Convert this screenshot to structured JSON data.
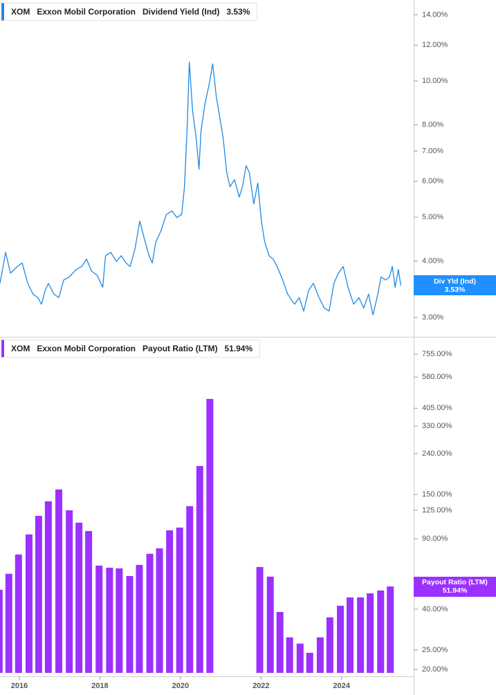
{
  "chart_data": [
    {
      "type": "line",
      "ticker": "XOM",
      "company": "Exxon Mobil Corporation",
      "current_label": "3.53%",
      "badge_label": "Div Yld (Ind)",
      "log_scale": true,
      "x": [
        2015.52,
        2015.66,
        2015.78,
        2015.95,
        2016.07,
        2016.21,
        2016.34,
        2016.46,
        2016.55,
        2016.64,
        2016.72,
        2016.86,
        2016.98,
        2017.1,
        2017.24,
        2017.41,
        2017.55,
        2017.67,
        2017.79,
        2017.93,
        2018.07,
        2018.14,
        2018.27,
        2018.41,
        2018.53,
        2018.65,
        2018.75,
        2018.87,
        2018.99,
        2019.1,
        2019.22,
        2019.3,
        2019.39,
        2019.51,
        2019.65,
        2019.79,
        2019.91,
        2020.03,
        2020.1,
        2020.17,
        2020.22,
        2020.3,
        2020.39,
        2020.46,
        2020.51,
        2020.61,
        2020.72,
        2020.8,
        2020.89,
        2020.99,
        2021.06,
        2021.15,
        2021.23,
        2021.34,
        2021.46,
        2021.54,
        2021.63,
        2021.71,
        2021.82,
        2021.92,
        2022.01,
        2022.09,
        2022.2,
        2022.3,
        2022.4,
        2022.54,
        2022.66,
        2022.83,
        2022.95,
        2023.06,
        2023.18,
        2023.3,
        2023.44,
        2023.57,
        2023.69,
        2023.81,
        2023.92,
        2024.04,
        2024.16,
        2024.3,
        2024.43,
        2024.55,
        2024.67,
        2024.78,
        2024.9,
        2024.98,
        2025.09,
        2025.19,
        2025.26,
        2025.33,
        2025.41,
        2025.47
      ],
      "series": [
        {
          "name": "Dividend Yield (Ind)",
          "color": "#1e88e5",
          "values": [
            3.57,
            4.18,
            3.76,
            3.89,
            3.96,
            3.57,
            3.38,
            3.32,
            3.21,
            3.44,
            3.57,
            3.38,
            3.32,
            3.63,
            3.69,
            3.83,
            3.89,
            4.04,
            3.8,
            3.72,
            3.5,
            4.11,
            4.18,
            3.99,
            4.11,
            3.96,
            3.89,
            4.25,
            4.9,
            4.49,
            4.11,
            3.96,
            4.41,
            4.65,
            5.07,
            5.16,
            4.99,
            5.07,
            5.84,
            8.03,
            11.02,
            8.61,
            7.48,
            6.38,
            7.75,
            8.92,
            9.91,
            10.91,
            9.24,
            8.17,
            7.48,
            6.27,
            5.84,
            6.05,
            5.54,
            5.84,
            6.5,
            6.27,
            5.35,
            5.95,
            4.9,
            4.41,
            4.11,
            4.04,
            3.89,
            3.63,
            3.38,
            3.21,
            3.32,
            3.1,
            3.44,
            3.57,
            3.32,
            3.15,
            3.1,
            3.57,
            3.76,
            3.89,
            3.5,
            3.21,
            3.32,
            3.15,
            3.38,
            3.04,
            3.38,
            3.69,
            3.63,
            3.69,
            3.89,
            3.5,
            3.83,
            3.53
          ]
        }
      ],
      "xlim": [
        2015.52,
        2025.79
      ],
      "ylim": [
        2.72,
        15.1
      ],
      "yticks": [
        {
          "value": 14,
          "label": "14.00%"
        },
        {
          "value": 12,
          "label": "12.00%"
        },
        {
          "value": 10,
          "label": "10.00%"
        },
        {
          "value": 8,
          "label": "8.00%"
        },
        {
          "value": 7,
          "label": "7.00%"
        },
        {
          "value": 6,
          "label": "6.00%"
        },
        {
          "value": 5,
          "label": "5.00%"
        },
        {
          "value": 4,
          "label": "4.00%"
        },
        {
          "value": 3,
          "label": "3.00%"
        }
      ]
    },
    {
      "type": "bar",
      "ticker": "XOM",
      "company": "Exxon Mobil Corporation",
      "current_label": "51.94%",
      "log_scale": true,
      "x": [
        2015.5,
        2015.74,
        2015.98,
        2016.24,
        2016.48,
        2016.72,
        2016.98,
        2017.24,
        2017.48,
        2017.72,
        2017.98,
        2018.24,
        2018.48,
        2018.74,
        2018.98,
        2019.24,
        2019.48,
        2019.73,
        2019.98,
        2020.23,
        2020.48,
        2020.73,
        2021.97,
        2022.23,
        2022.47,
        2022.71,
        2022.97,
        2023.21,
        2023.47,
        2023.71,
        2023.97,
        2024.21,
        2024.47,
        2024.71,
        2024.97,
        2025.21
      ],
      "series": [
        {
          "name": "Payout Ratio (LTM)",
          "color": "#9b30ff",
          "values": [
            50.0,
            60.1,
            75.1,
            94.6,
            117.2,
            138.6,
            158.8,
            125.0,
            108.3,
            98.4,
            66.1,
            64.5,
            64.0,
            58.6,
            66.6,
            75.7,
            80.6,
            99.2,
            102.4,
            131.1,
            208.1,
            450.8,
            65.0,
            58.2,
            38.7,
            28.9,
            26.9,
            24.2,
            28.9,
            36.4,
            41.6,
            45.8,
            45.8,
            48.0,
            49.6,
            51.94
          ]
        }
      ],
      "xlim": [
        2015.52,
        2025.79
      ],
      "xticks": [
        2016,
        2018,
        2020,
        2022,
        2024
      ],
      "ylim": [
        19.2,
        915
      ],
      "yticks": [
        {
          "value": 755,
          "label": "755.00%"
        },
        {
          "value": 580,
          "label": "580.00%"
        },
        {
          "value": 405,
          "label": "405.00%"
        },
        {
          "value": 330,
          "label": "330.00%"
        },
        {
          "value": 240,
          "label": "240.00%"
        },
        {
          "value": 150,
          "label": "150.00%"
        },
        {
          "value": 125,
          "label": "125.00%"
        },
        {
          "value": 90,
          "label": "90.00%"
        },
        {
          "value": 40,
          "label": "40.00%"
        },
        {
          "value": 25,
          "label": "25.00%"
        },
        {
          "value": 20,
          "label": "20.00%"
        }
      ]
    }
  ]
}
